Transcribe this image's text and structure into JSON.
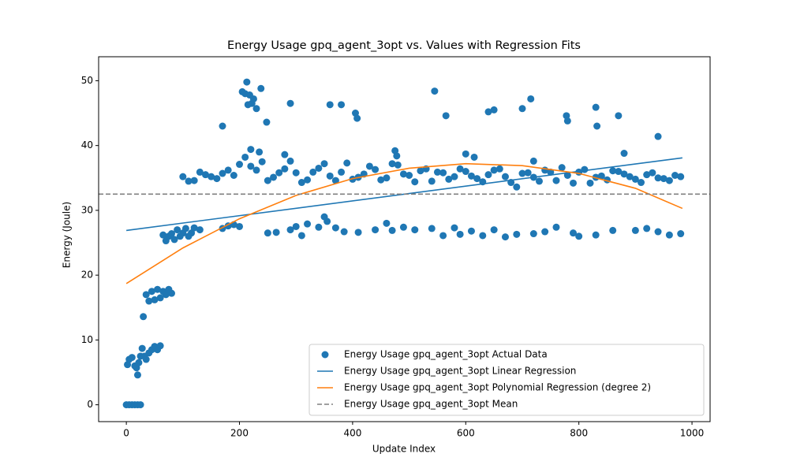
{
  "chart_data": {
    "type": "scatter",
    "title": "Energy Usage gpq_agent_3opt vs. Values with Regression Fits",
    "xlabel": "Update Index",
    "ylabel": "Energy (Joule)",
    "xlim": [
      -49,
      1032
    ],
    "ylim": [
      -2.6,
      53.7
    ],
    "xticks": [
      0,
      200,
      400,
      600,
      800,
      1000
    ],
    "yticks": [
      0,
      10,
      20,
      30,
      40,
      50
    ],
    "legend": "lower right",
    "series": [
      {
        "name": "Energy Usage gpq_agent_3opt Actual Data",
        "type": "scatter",
        "color": "#1f77b4",
        "x": [
          0,
          5,
          10,
          15,
          20,
          25,
          2,
          5,
          10,
          15,
          18,
          20,
          22,
          25,
          28,
          30,
          32,
          35,
          40,
          45,
          50,
          55,
          60,
          35,
          40,
          45,
          50,
          55,
          60,
          65,
          70,
          75,
          80,
          65,
          70,
          75,
          80,
          85,
          90,
          95,
          100,
          105,
          110,
          115,
          120,
          170,
          205,
          210,
          213,
          215,
          218,
          222,
          225,
          230,
          238,
          248,
          290,
          360,
          380,
          405,
          408,
          545,
          565,
          640,
          650,
          700,
          715,
          778,
          780,
          830,
          832,
          870,
          940,
          220,
          235,
          280,
          475,
          478,
          600,
          615,
          720,
          880,
          130,
          170,
          180,
          190,
          200,
          250,
          265,
          290,
          300,
          310,
          320,
          340,
          350,
          355,
          370,
          385,
          410,
          440,
          460,
          470,
          490,
          510,
          540,
          560,
          580,
          590,
          610,
          630,
          650,
          670,
          690,
          720,
          740,
          760,
          790,
          800,
          830,
          860,
          900,
          920,
          940,
          960,
          980,
          100,
          120,
          140,
          160,
          180,
          200,
          220,
          240,
          260,
          280,
          300,
          320,
          340,
          360,
          380,
          400,
          420,
          440,
          460,
          480,
          500,
          520,
          540,
          560,
          580,
          600,
          620,
          640,
          660,
          680,
          700,
          720,
          740,
          760,
          780,
          800,
          820,
          840,
          860,
          880,
          900,
          920,
          940,
          960,
          980,
          110,
          130,
          150,
          170,
          190,
          210,
          230,
          250,
          270,
          290,
          310,
          330,
          350,
          370,
          390,
          410,
          430,
          450,
          470,
          490,
          510,
          530,
          550,
          570,
          590,
          610,
          630,
          650,
          670,
          690,
          710,
          730,
          750,
          770,
          790,
          810,
          830,
          850,
          870,
          890,
          910,
          930,
          950,
          970
        ],
        "values": [
          0,
          0,
          0,
          0,
          0,
          0,
          6.2,
          7,
          7.3,
          6,
          5.7,
          4.6,
          6.5,
          7.5,
          8.7,
          13.6,
          7.5,
          7,
          8,
          8.5,
          9,
          8.5,
          9.1,
          17,
          16,
          17.5,
          16.2,
          17.8,
          16.5,
          17.5,
          17,
          17.8,
          17.2,
          26.2,
          25.3,
          26,
          26.4,
          25.5,
          27,
          26,
          26.5,
          27.2,
          26,
          26.5,
          27.3,
          43,
          48.3,
          48,
          49.8,
          46.3,
          47.8,
          46.5,
          47.2,
          45.7,
          48.8,
          43.6,
          46.5,
          46.3,
          46.3,
          45,
          44.2,
          48.4,
          44.6,
          45.2,
          45.5,
          45.7,
          47.2,
          44.6,
          43.8,
          45.9,
          43,
          44.6,
          41.4,
          39.4,
          39,
          38.6,
          39.2,
          38.4,
          38.7,
          38.2,
          37.6,
          38.8,
          27,
          27.2,
          27.6,
          27.8,
          27.5,
          26.5,
          26.6,
          27,
          27.5,
          26.1,
          27.9,
          27.4,
          29,
          28.3,
          27.3,
          26.7,
          26.6,
          27,
          28,
          26.9,
          27.4,
          27,
          27.2,
          26.1,
          27.3,
          26.3,
          26.8,
          26.1,
          27,
          25.9,
          26.3,
          26.4,
          26.7,
          27.4,
          26.5,
          26,
          26.2,
          26.9,
          26.9,
          27.2,
          26.7,
          26.2,
          26.4,
          35.2,
          34.6,
          35.5,
          34.9,
          36.2,
          37.1,
          36.8,
          37.5,
          35.1,
          36.4,
          35.8,
          34.7,
          36.5,
          35.3,
          35.9,
          34.8,
          35.6,
          36.3,
          35,
          37,
          35.4,
          36.1,
          34.5,
          35.8,
          35.2,
          36,
          34.9,
          35.5,
          36.4,
          34.3,
          35.7,
          35.1,
          36.2,
          34.6,
          35.4,
          35.9,
          34.2,
          35.3,
          36.1,
          35.6,
          34.8,
          35.5,
          35,
          34.6,
          35.2,
          34.5,
          35.9,
          35.2,
          35.7,
          35.4,
          38.2,
          36.2,
          34.6,
          35.8,
          37.6,
          34.3,
          35.9,
          37.2,
          34.6,
          37.3,
          35.1,
          36.8,
          34.7,
          37.2,
          35.6,
          34.4,
          36.4,
          35.9,
          34.8,
          36.4,
          35.3,
          34.4,
          36.2,
          35.2,
          33.6,
          35.8,
          34.5,
          35.9,
          36.6,
          34.2,
          36.3,
          35.1,
          34.7,
          36,
          35.2,
          34.3,
          35.8,
          34.9,
          35.4
        ]
      },
      {
        "name": "Energy Usage gpq_agent_3opt Linear Regression",
        "type": "line",
        "color": "#1f77b4",
        "x": [
          0,
          983
        ],
        "values": [
          26.9,
          38.1
        ]
      },
      {
        "name": "Energy Usage gpq_agent_3opt Polynomial Regression (degree 2)",
        "type": "line",
        "color": "#ff7f0e",
        "x": [
          0,
          100,
          200,
          300,
          400,
          500,
          600,
          700,
          800,
          900,
          983
        ],
        "values": [
          18.7,
          24.2,
          28.7,
          32.3,
          34.9,
          36.5,
          37.2,
          36.9,
          35.7,
          33.4,
          30.3
        ]
      },
      {
        "name": "Energy Usage gpq_agent_3opt Mean",
        "type": "hline",
        "color": "#808080",
        "linestyle": "dashed",
        "values": [
          32.5
        ]
      }
    ]
  }
}
